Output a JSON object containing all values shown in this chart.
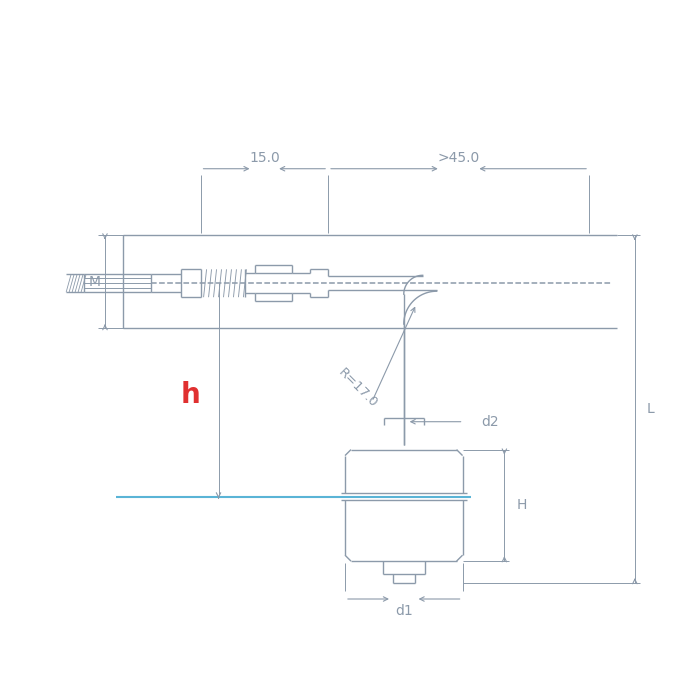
{
  "bg_color": "#ffffff",
  "line_color": "#8c9aaa",
  "red_color": "#e03030",
  "blue_color": "#5ab4d6",
  "dim_15": "15.0",
  "dim_45": ">45.0",
  "dim_R": "R=17.0",
  "dim_d1": "d1",
  "dim_d2": "d2",
  "dim_h": "h",
  "dim_H": "H",
  "dim_L": "L",
  "dim_M": "M"
}
